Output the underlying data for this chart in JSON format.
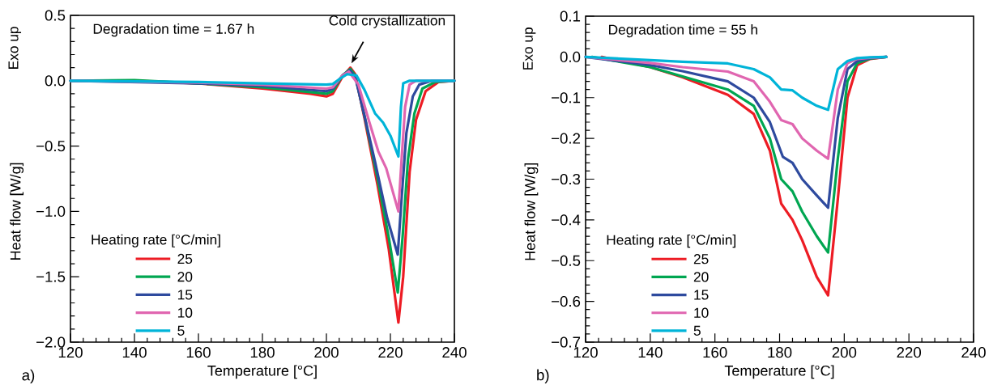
{
  "chart_data": [
    {
      "type": "line",
      "xlabel": "Temperature [°C]",
      "ylabel": "Heat flow [W/g]",
      "legend_title": "Heating rate [°C/min]",
      "legend": "bottom left",
      "grid": false,
      "marker": "none",
      "line_style": "solid",
      "xlim": [
        120,
        240
      ],
      "xticks": [
        120,
        140,
        160,
        180,
        200,
        220,
        240
      ],
      "ylim": [
        -2.0,
        0.5
      ],
      "yticks": [
        {
          "value": 0.5,
          "label": "0.5"
        },
        {
          "value": 0.0,
          "label": "0.0"
        },
        {
          "value": -0.5,
          "label": "−0.5"
        },
        {
          "value": -1.0,
          "label": "−1.0"
        },
        {
          "value": -1.5,
          "label": "−1.5"
        },
        {
          "value": -2.0,
          "label": "−2.0"
        }
      ],
      "annotations": [
        "Exo up",
        "Degradation time = 1.67 h",
        {
          "text": "Cold crystallization",
          "x": 207.5,
          "y": 0.1
        },
        "a)"
      ],
      "series": [
        {
          "name": "25",
          "color": "#ed1c24",
          "x": [
            120,
            140,
            160,
            180,
            195,
            200,
            202,
            205,
            207.5,
            209,
            212,
            216,
            219.5,
            222.5,
            224,
            226,
            228,
            231,
            235,
            240
          ],
          "values": [
            0,
            0,
            -0.02,
            -0.06,
            -0.1,
            -0.12,
            -0.1,
            0.03,
            0.1,
            0.05,
            -0.3,
            -0.8,
            -1.29,
            -1.85,
            -1.5,
            -0.7,
            -0.3,
            -0.08,
            -0.01,
            0
          ]
        },
        {
          "name": "20",
          "color": "#00a651",
          "x": [
            120,
            140,
            160,
            180,
            200,
            202,
            205,
            207.5,
            209,
            212,
            216,
            219.5,
            222.3,
            223.8,
            225.5,
            227.5,
            230,
            234,
            240
          ],
          "values": [
            0,
            0.005,
            -0.02,
            -0.05,
            -0.1,
            -0.08,
            0.04,
            0.09,
            0.04,
            -0.28,
            -0.75,
            -1.2,
            -1.62,
            -1.2,
            -0.6,
            -0.25,
            -0.06,
            -0.01,
            0
          ]
        },
        {
          "name": "15",
          "color": "#2e4a9e",
          "x": [
            120,
            160,
            180,
            200,
            202,
            205,
            207.3,
            209,
            212,
            215.2,
            219,
            222.3,
            223.5,
            225,
            227,
            229,
            233,
            240
          ],
          "values": [
            0,
            -0.02,
            -0.04,
            -0.08,
            -0.06,
            0.04,
            0.08,
            0.03,
            -0.28,
            -0.62,
            -1.05,
            -1.33,
            -0.9,
            -0.4,
            -0.12,
            -0.03,
            0,
            0
          ]
        },
        {
          "name": "10",
          "color": "#e066b0",
          "x": [
            120,
            160,
            180,
            200,
            202,
            205,
            207,
            210,
            213.2,
            216.2,
            218.7,
            222.5,
            223.5,
            224.6,
            226,
            228,
            240
          ],
          "values": [
            0,
            -0.015,
            -0.03,
            -0.06,
            -0.05,
            0.04,
            0.07,
            -0.03,
            -0.3,
            -0.54,
            -0.67,
            -1.0,
            -0.6,
            -0.2,
            -0.03,
            0,
            0
          ]
        },
        {
          "name": "5",
          "color": "#00b4d8",
          "x": [
            120,
            160,
            180,
            200,
            202,
            204.5,
            206.5,
            209.4,
            211.9,
            215.2,
            217.7,
            220,
            222.5,
            223.3,
            224,
            226,
            240
          ],
          "values": [
            0,
            -0.01,
            -0.02,
            -0.03,
            -0.025,
            0.02,
            0.05,
            0.04,
            -0.07,
            -0.25,
            -0.32,
            -0.42,
            -0.58,
            -0.2,
            -0.02,
            0,
            0
          ]
        }
      ]
    },
    {
      "type": "line",
      "xlabel": "Temperature [°C]",
      "ylabel": "Heat flow [W/g]",
      "legend_title": "Heating rate [°C/min]",
      "legend": "bottom left",
      "grid": false,
      "marker": "none",
      "line_style": "solid",
      "xlim": [
        120,
        240
      ],
      "xticks": [
        120,
        140,
        160,
        180,
        200,
        220,
        240
      ],
      "ylim": [
        -0.7,
        0.1
      ],
      "yticks": [
        {
          "value": 0.1,
          "label": "0.1"
        },
        {
          "value": 0.0,
          "label": "0.0"
        },
        {
          "value": -0.1,
          "label": "−0.1"
        },
        {
          "value": -0.2,
          "label": "−0.2"
        },
        {
          "value": -0.3,
          "label": "−0.3"
        },
        {
          "value": -0.4,
          "label": "−0.4"
        },
        {
          "value": -0.5,
          "label": "−0.5"
        },
        {
          "value": -0.6,
          "label": "−0.6"
        },
        {
          "value": -0.7,
          "label": "−0.7"
        }
      ],
      "annotations": [
        "Exo up",
        "Degradation time = 55 h",
        "b)"
      ],
      "series": [
        {
          "name": "25",
          "color": "#ed1c24",
          "x": [
            125,
            140,
            150,
            164,
            172,
            177,
            180.5,
            184,
            187,
            191.5,
            195,
            198,
            201,
            204,
            208,
            213
          ],
          "values": [
            0,
            -0.025,
            -0.05,
            -0.093,
            -0.14,
            -0.23,
            -0.36,
            -0.4,
            -0.45,
            -0.54,
            -0.585,
            -0.35,
            -0.1,
            -0.02,
            -0.005,
            0
          ]
        },
        {
          "name": "20",
          "color": "#00a651",
          "x": [
            122,
            140,
            150,
            164,
            172,
            177,
            180.5,
            184,
            187,
            191.5,
            195,
            198,
            201,
            204,
            208,
            213
          ],
          "values": [
            0,
            -0.025,
            -0.048,
            -0.08,
            -0.12,
            -0.2,
            -0.3,
            -0.33,
            -0.38,
            -0.44,
            -0.48,
            -0.25,
            -0.06,
            -0.015,
            -0.004,
            0
          ]
        },
        {
          "name": "15",
          "color": "#2e4a9e",
          "x": [
            120,
            140,
            150,
            164,
            172,
            177,
            181,
            184,
            187,
            191.5,
            195,
            198,
            201,
            204,
            208,
            213
          ],
          "values": [
            0,
            -0.02,
            -0.035,
            -0.06,
            -0.1,
            -0.16,
            -0.245,
            -0.26,
            -0.3,
            -0.34,
            -0.37,
            -0.15,
            -0.03,
            -0.01,
            -0.003,
            0
          ]
        },
        {
          "name": "10",
          "color": "#e066b0",
          "x": [
            120,
            140,
            150,
            164,
            172,
            177,
            180.5,
            184,
            187,
            191.5,
            195,
            198,
            201,
            204,
            208,
            213
          ],
          "values": [
            0,
            -0.015,
            -0.025,
            -0.036,
            -0.06,
            -0.11,
            -0.155,
            -0.165,
            -0.2,
            -0.23,
            -0.25,
            -0.08,
            -0.015,
            -0.005,
            -0.002,
            0
          ]
        },
        {
          "name": "5",
          "color": "#00b4d8",
          "x": [
            120,
            140,
            150,
            164,
            172,
            177,
            180.5,
            184,
            187,
            191.5,
            195,
            198,
            201,
            204,
            208,
            213
          ],
          "values": [
            0,
            -0.008,
            -0.012,
            -0.016,
            -0.03,
            -0.05,
            -0.08,
            -0.082,
            -0.1,
            -0.12,
            -0.13,
            -0.03,
            -0.01,
            -0.003,
            -0.001,
            0
          ]
        }
      ]
    }
  ]
}
